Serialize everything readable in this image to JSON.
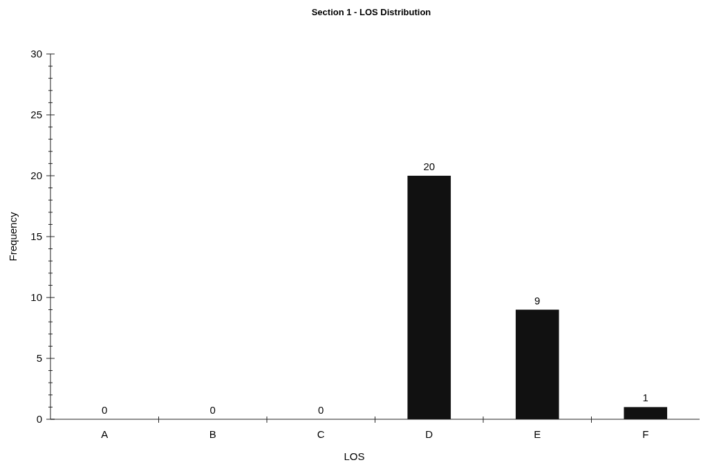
{
  "chart_data": {
    "type": "bar",
    "title": "Section 1 - LOS Distribution",
    "xlabel": "LOS",
    "ylabel": "Frequency",
    "categories": [
      "A",
      "B",
      "C",
      "D",
      "E",
      "F"
    ],
    "values": [
      0,
      0,
      0,
      20,
      9,
      1
    ],
    "color": "#111111",
    "ylim": [
      0,
      30
    ],
    "yticks": [
      0,
      {
        "value": 1,
        "label": null
      },
      {
        "value": 2,
        "label": null
      },
      {
        "value": 3,
        "label": null
      },
      {
        "value": 4,
        "label": null
      },
      5,
      {
        "value": 6,
        "label": null
      },
      {
        "value": 7,
        "label": null
      },
      {
        "value": 8,
        "label": null
      },
      {
        "value": 9,
        "label": null
      },
      10,
      {
        "value": 11,
        "label": null
      },
      {
        "value": 12,
        "label": null
      },
      {
        "value": 13,
        "label": null
      },
      {
        "value": 14,
        "label": null
      },
      15,
      {
        "value": 16,
        "label": null
      },
      {
        "value": 17,
        "label": null
      },
      {
        "value": 18,
        "label": null
      },
      {
        "value": 19,
        "label": null
      },
      20,
      {
        "value": 21,
        "label": null
      },
      {
        "value": 22,
        "label": null
      },
      {
        "value": 23,
        "label": null
      },
      {
        "value": 24,
        "label": null
      },
      25,
      {
        "value": 26,
        "label": null
      },
      {
        "value": 27,
        "label": null
      },
      {
        "value": 28,
        "label": null
      },
      {
        "value": 29,
        "label": null
      },
      30
    ],
    "data_labels": true,
    "grid": false
  }
}
